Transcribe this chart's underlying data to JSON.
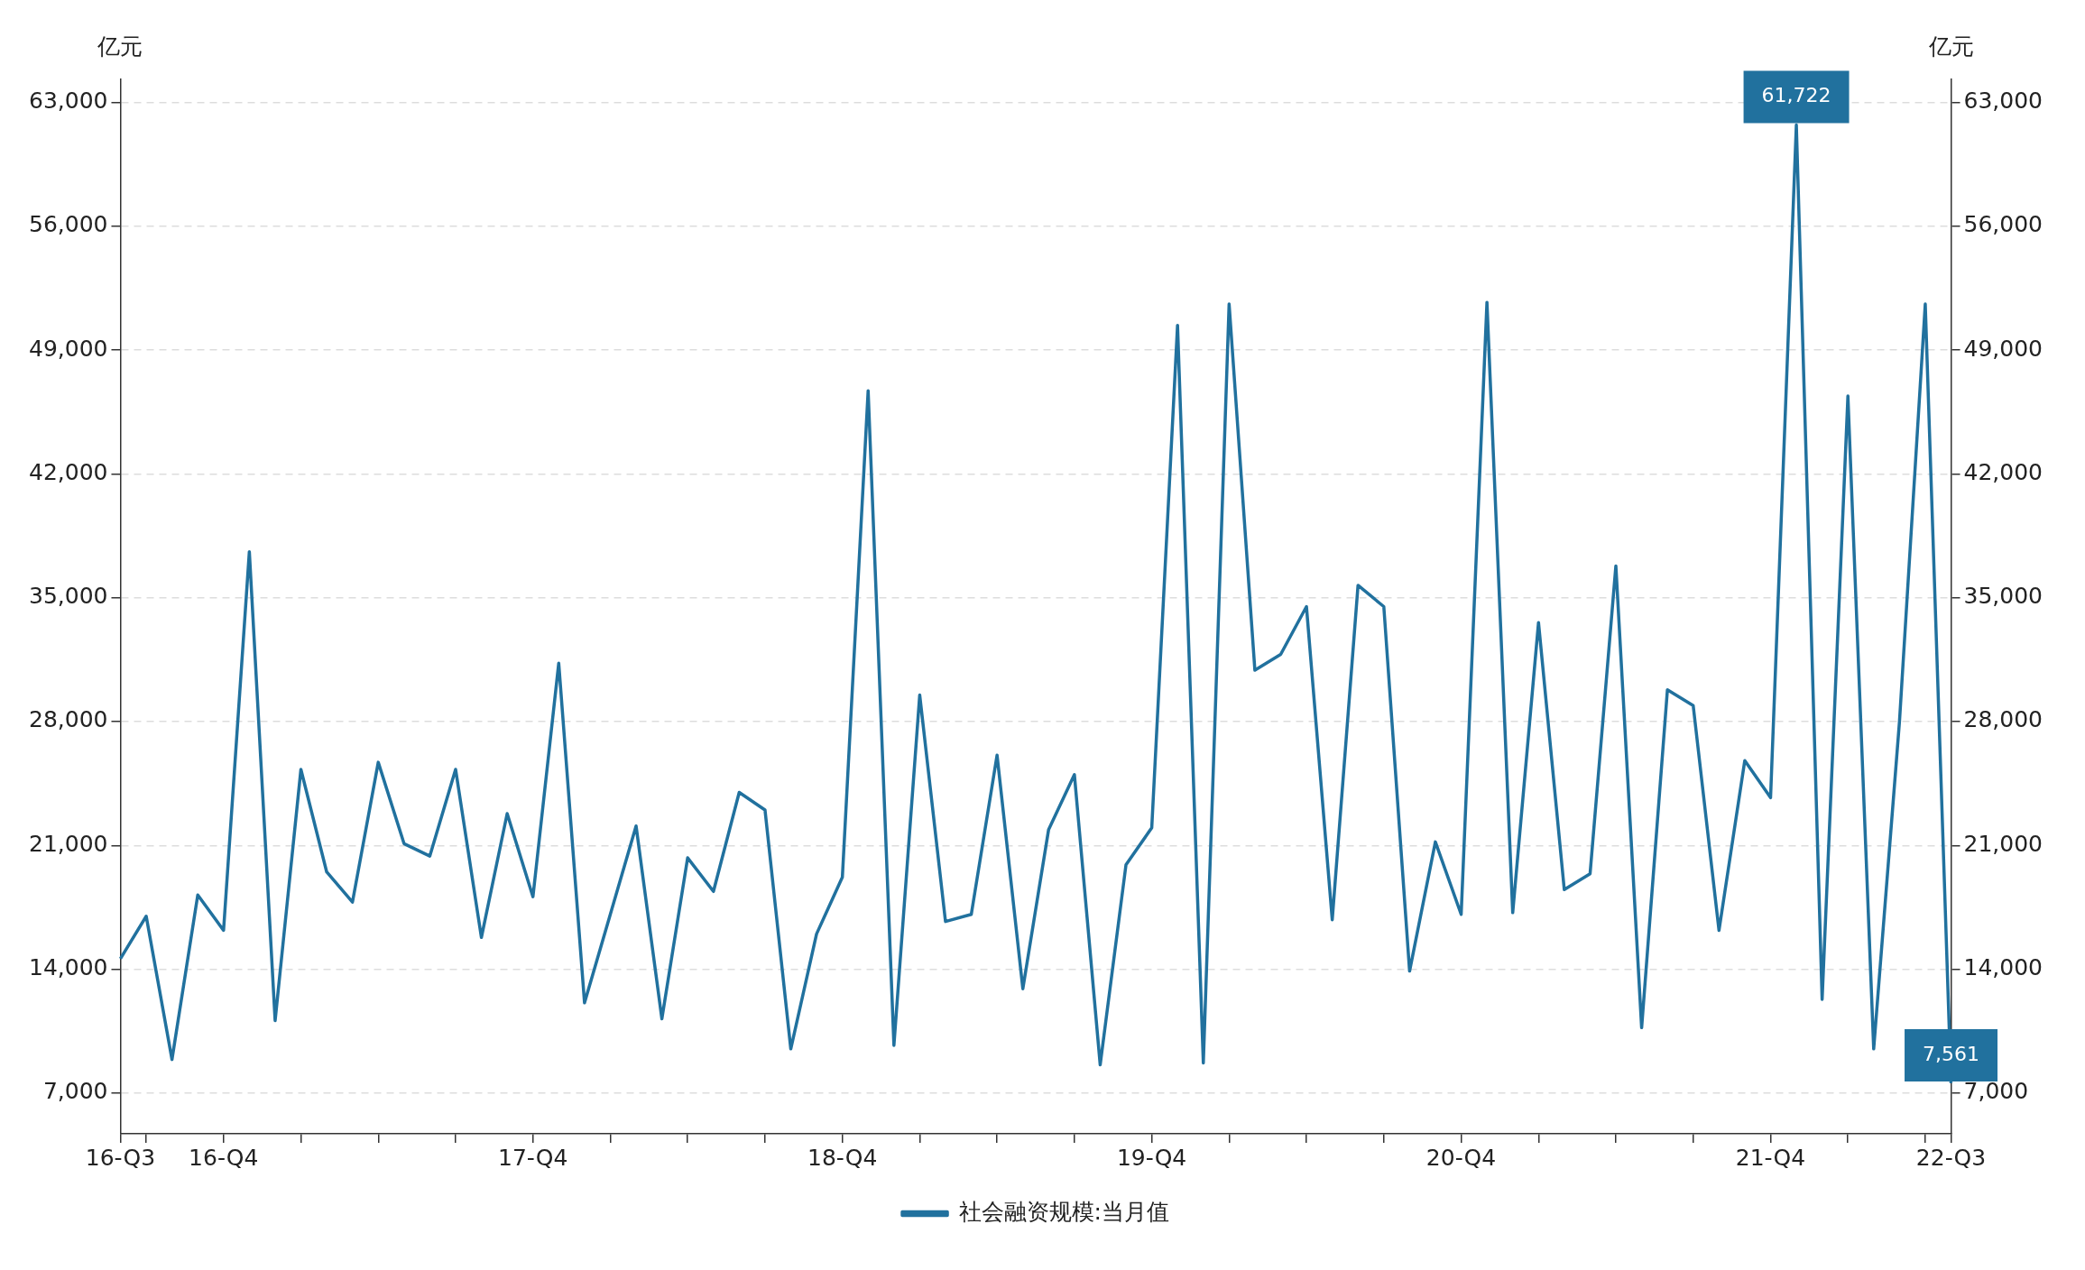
{
  "chart_data": {
    "type": "line",
    "ylabel": "亿元",
    "y2label": "亿元",
    "categories": [
      "16-Q3",
      null,
      null,
      null,
      "16-Q4",
      null,
      null,
      null,
      null,
      null,
      null,
      null,
      null,
      null,
      null,
      null,
      "17-Q4",
      null,
      null,
      null,
      null,
      null,
      null,
      null,
      null,
      null,
      null,
      null,
      "18-Q4",
      null,
      null,
      null,
      null,
      null,
      null,
      null,
      null,
      null,
      null,
      null,
      "19-Q4",
      null,
      null,
      null,
      null,
      null,
      null,
      null,
      null,
      null,
      null,
      null,
      "20-Q4",
      null,
      null,
      null,
      null,
      null,
      null,
      null,
      null,
      null,
      null,
      null,
      "21-Q4",
      null,
      null,
      null,
      null,
      null,
      null,
      "22-Q3"
    ],
    "series": [
      {
        "name": "社会融资规模:当月值",
        "color": "#21719e",
        "values": [
          14600,
          17000,
          8900,
          18200,
          16200,
          37600,
          11100,
          25300,
          19500,
          17800,
          25700,
          21100,
          20400,
          25300,
          15800,
          22800,
          18100,
          31300,
          12100,
          17100,
          22100,
          11200,
          20300,
          18400,
          24000,
          23000,
          9500,
          16000,
          19200,
          46700,
          9700,
          29500,
          16700,
          17100,
          26100,
          12900,
          21900,
          25000,
          8600,
          19900,
          22000,
          50400,
          8700,
          51600,
          30900,
          31800,
          34500,
          16800,
          35700,
          34500,
          13900,
          21200,
          17100,
          51700,
          17200,
          33600,
          18500,
          19400,
          36800,
          10700,
          29800,
          28900,
          16200,
          25800,
          23700,
          61722,
          12300,
          46400,
          9500,
          28000,
          51600,
          7561
        ],
        "value_labels": [
          null,
          null,
          null,
          null,
          null,
          null,
          null,
          null,
          null,
          null,
          null,
          null,
          null,
          null,
          null,
          null,
          null,
          null,
          null,
          null,
          null,
          null,
          null,
          null,
          null,
          null,
          null,
          null,
          null,
          null,
          null,
          null,
          null,
          null,
          null,
          null,
          null,
          null,
          null,
          null,
          null,
          null,
          null,
          null,
          null,
          null,
          null,
          null,
          null,
          null,
          null,
          null,
          null,
          null,
          null,
          null,
          null,
          null,
          null,
          null,
          null,
          null,
          null,
          null,
          null,
          "61,722",
          null,
          null,
          null,
          null,
          null,
          "7,561"
        ]
      }
    ],
    "ylim": [
      4700,
      64300
    ],
    "yticks": [
      {
        "value": 7000,
        "label": "7,000"
      },
      {
        "value": 14000,
        "label": "14,000"
      },
      {
        "value": 21000,
        "label": "21,000"
      },
      {
        "value": 28000,
        "label": "28,000"
      },
      {
        "value": 35000,
        "label": "35,000"
      },
      {
        "value": 42000,
        "label": "42,000"
      },
      {
        "value": 49000,
        "label": "49,000"
      },
      {
        "value": 56000,
        "label": "56,000"
      },
      {
        "value": 63000,
        "label": "63,000"
      }
    ],
    "y2lim": [
      4700,
      64300
    ],
    "y2ticks": [
      {
        "value": 7000,
        "label": "7,000"
      },
      {
        "value": 14000,
        "label": "14,000"
      },
      {
        "value": 21000,
        "label": "21,000"
      },
      {
        "value": 28000,
        "label": "28,000"
      },
      {
        "value": 35000,
        "label": "35,000"
      },
      {
        "value": 42000,
        "label": "42,000"
      },
      {
        "value": 49000,
        "label": "49,000"
      },
      {
        "value": 56000,
        "label": "56,000"
      },
      {
        "value": 63000,
        "label": "63,000"
      }
    ],
    "grid": "y",
    "legend": "bottom",
    "marker": "none",
    "line_style": "solid"
  }
}
